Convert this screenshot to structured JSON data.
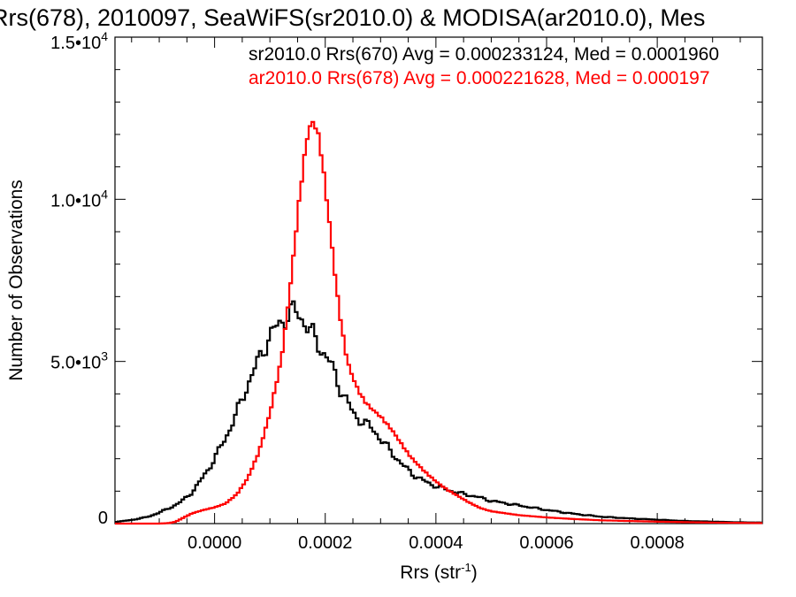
{
  "chart_data": {
    "type": "step",
    "title": "Rrs(678), 2010097, SeaWiFS(sr2010.0) & MODISA(ar2010.0), Mes",
    "xlabel_base": "Rrs (str",
    "xlabel_sup": "-1",
    "xlabel_close": ")",
    "ylabel": "Number of Observations",
    "xlim": [
      -0.00018,
      0.00099
    ],
    "ylim": [
      0,
      15000
    ],
    "x_ticks": [
      {
        "value": 0.0,
        "label": "0.0000"
      },
      {
        "value": 0.0002,
        "label": "0.0002"
      },
      {
        "value": 0.0004,
        "label": "0.0004"
      },
      {
        "value": 0.0006,
        "label": "0.0006"
      },
      {
        "value": 0.0008,
        "label": "0.0008"
      }
    ],
    "y_ticks": [
      {
        "value": 0,
        "base": "0",
        "exp": ""
      },
      {
        "value": 5000,
        "base": "5.0•10",
        "exp": "3"
      },
      {
        "value": 10000,
        "base": "1.0•10",
        "exp": "4"
      },
      {
        "value": 15000,
        "base": "1.5•10",
        "exp": "4"
      }
    ],
    "x_minor_step": 5e-05,
    "y_minor_step": 1000,
    "legend": [
      {
        "text": "sr2010.0 Rrs(670) Avg = 0.000233124, Med = 0.0001960",
        "color": "#000000"
      },
      {
        "text": "ar2010.0 Rrs(678) Avg = 0.000221628, Med = 0.000197",
        "color": "#ff0000"
      }
    ],
    "legend_placement": "top-right",
    "series": [
      {
        "name": "sr2010.0 Rrs(670)",
        "color": "#000000",
        "x": [
          -0.00018,
          -0.00015,
          -0.00012,
          -0.0001,
          -8e-05,
          -6e-05,
          -4e-05,
          -2e-05,
          0.0,
          2e-05,
          4e-05,
          6e-05,
          8e-05,
          0.0001,
          0.00012,
          0.00013,
          0.00014,
          0.00015,
          0.00016,
          0.00017,
          0.00018,
          0.00019,
          0.0002,
          0.00021,
          0.00022,
          0.00023,
          0.00024,
          0.00025,
          0.00026,
          0.00027,
          0.00028,
          0.00029,
          0.0003,
          0.00031,
          0.00032,
          0.00033,
          0.00034,
          0.00035,
          0.00036,
          0.00037,
          0.00038,
          0.0004,
          0.00042,
          0.00044,
          0.00046,
          0.00048,
          0.0005,
          0.00055,
          0.0006,
          0.00065,
          0.0007,
          0.00075,
          0.0008,
          0.00085,
          0.0009,
          0.00095,
          0.00099
        ],
        "y": [
          50,
          110,
          210,
          340,
          490,
          680,
          980,
          1450,
          2000,
          2650,
          3400,
          4300,
          5050,
          5800,
          6200,
          6400,
          6550,
          6500,
          6300,
          6000,
          5750,
          5450,
          5200,
          4900,
          4500,
          4050,
          3750,
          3400,
          3250,
          3100,
          3000,
          2850,
          2600,
          2400,
          2200,
          2000,
          1800,
          1650,
          1500,
          1400,
          1300,
          1150,
          1050,
          950,
          880,
          800,
          700,
          560,
          420,
          300,
          210,
          160,
          120,
          80,
          60,
          40,
          30
        ]
      },
      {
        "name": "ar2010.0 Rrs(678)",
        "color": "#ff0000",
        "x": [
          -0.00018,
          -0.0001,
          -8e-05,
          -7e-05,
          -6e-05,
          -4e-05,
          -2e-05,
          0.0,
          2e-05,
          4e-05,
          6e-05,
          8e-05,
          0.0001,
          0.00012,
          0.00013,
          0.00014,
          0.00015,
          0.00016,
          0.00017,
          0.00018,
          0.00019,
          0.0002,
          0.00021,
          0.00022,
          0.00023,
          0.00024,
          0.00025,
          0.00026,
          0.00027,
          0.00028,
          0.00029,
          0.0003,
          0.00031,
          0.00032,
          0.00033,
          0.00034,
          0.00035,
          0.00036,
          0.00038,
          0.0004,
          0.00042,
          0.00044,
          0.00046,
          0.00048,
          0.0005,
          0.00055,
          0.0006,
          0.00065,
          0.0007,
          0.0008,
          0.0009,
          0.00099
        ],
        "y": [
          0,
          0,
          20,
          60,
          150,
          320,
          420,
          500,
          620,
          900,
          1400,
          2200,
          3400,
          5000,
          6300,
          7800,
          9500,
          11000,
          12200,
          12400,
          11800,
          10400,
          8900,
          7300,
          6000,
          5000,
          4500,
          4100,
          3800,
          3600,
          3450,
          3300,
          3100,
          2900,
          2650,
          2400,
          2150,
          1950,
          1600,
          1300,
          1050,
          850,
          650,
          480,
          380,
          260,
          190,
          140,
          100,
          60,
          30,
          15
        ]
      }
    ]
  }
}
